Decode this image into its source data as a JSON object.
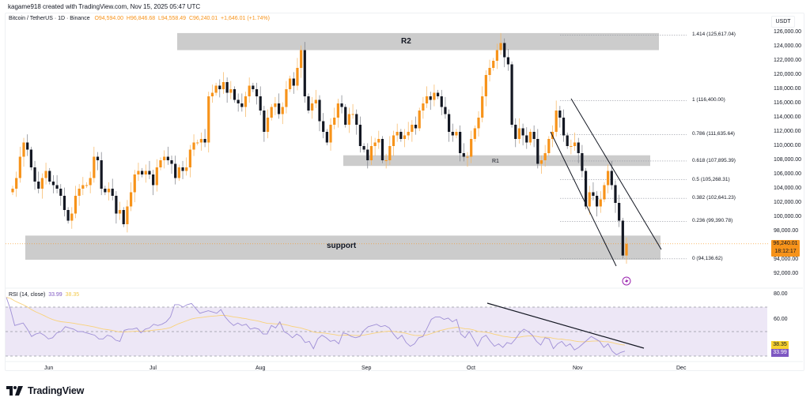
{
  "attribution": "kagame918 created with TradingView.com, Nov 15, 2025 05:47 UTC",
  "legend": {
    "symbol": "Bitcoin / TetherUS · 1D · Binance",
    "open": "O94,594.00",
    "high": "H96,846.68",
    "low": "L94,558.49",
    "close": "C96,240.01",
    "change": "+1,646.01 (+1.74%)"
  },
  "currency": "USDT",
  "price_tag": {
    "price": "96,240.01",
    "countdown": "18:12:17"
  },
  "rsi_legend": {
    "label": "RSI (14, close)",
    "rsi": "33.99",
    "ma": "38.35"
  },
  "rsi_tags": {
    "ma": "38.35",
    "rsi": "33.99"
  },
  "price_axis": [
    "126,000.00",
    "124,000.00",
    "122,000.00",
    "120,000.00",
    "118,000.00",
    "116,000.00",
    "114,000.00",
    "112,000.00",
    "110,000.00",
    "108,000.00",
    "106,000.00",
    "104,000.00",
    "102,000.00",
    "100,000.00",
    "98,000.00",
    "94,000.00",
    "92,000.00"
  ],
  "rsi_axis": [
    "80.00",
    "60.00"
  ],
  "x_axis": [
    "Jun",
    "Jul",
    "Aug",
    "Sep",
    "Oct",
    "Nov",
    "Dec"
  ],
  "zones": {
    "r2": "R2",
    "r1": "R1",
    "support": "support"
  },
  "fib_levels": [
    {
      "label": "1.414 (125,617.04)"
    },
    {
      "label": "1 (116,400.00)"
    },
    {
      "label": "0.786 (111,635.64)"
    },
    {
      "label": "0.618 (107,895.39)"
    },
    {
      "label": "0.5 (105,268.31)"
    },
    {
      "label": "0.382 (102,641.23)"
    },
    {
      "label": "0.236 (99,390.78)"
    },
    {
      "label": "0 (94,136.62)"
    }
  ],
  "branding": {
    "logo_text": "TradingView"
  },
  "colors": {
    "up": "#f7931a",
    "down": "#131722",
    "zone": "#cccccc",
    "rsi": "#7e57c2",
    "rsi_ma": "#f9d22f",
    "rsi_band": "#ede7f6"
  },
  "chart_data": {
    "type": "candlestick",
    "title": "Bitcoin / TetherUS · 1D · Binance",
    "ylabel": "USDT",
    "ylim": [
      91000,
      127000
    ],
    "x_ticks": [
      "Jun",
      "Jul",
      "Aug",
      "Sep",
      "Oct",
      "Nov",
      "Dec"
    ],
    "last": {
      "open": 94594.0,
      "high": 96846.68,
      "low": 94558.49,
      "close": 96240.01,
      "change": 1646.01,
      "change_pct": 1.74
    },
    "close_path": [
      104000,
      105500,
      108500,
      110500,
      109500,
      107000,
      105000,
      104000,
      105500,
      106500,
      105000,
      104500,
      104000,
      103000,
      101000,
      99500,
      100500,
      103000,
      104000,
      104500,
      104500,
      105500,
      108500,
      108000,
      104000,
      103500,
      104000,
      103000,
      100500,
      101000,
      99000,
      101500,
      103500,
      106000,
      106500,
      106000,
      106500,
      106000,
      104500,
      107000,
      108000,
      108500,
      108000,
      107500,
      105500,
      107000,
      106500,
      107000,
      109500,
      110500,
      110500,
      111000,
      110500,
      117000,
      117500,
      118500,
      118000,
      119000,
      117500,
      118000,
      116500,
      116000,
      115500,
      117000,
      118500,
      118000,
      117000,
      115000,
      112000,
      114000,
      115500,
      116000,
      114500,
      115500,
      118000,
      119500,
      118500,
      121000,
      123500,
      117000,
      115000,
      116000,
      116500,
      113500,
      112000,
      110500,
      113000,
      114000,
      116000,
      115500,
      113000,
      114500,
      114500,
      113000,
      110000,
      109500,
      108000,
      110000,
      110500,
      111000,
      108000,
      108000,
      110000,
      111500,
      112000,
      111000,
      111500,
      112000,
      113000,
      112500,
      115000,
      116000,
      117000,
      116500,
      117500,
      117000,
      115500,
      114500,
      112000,
      111500,
      112000,
      109000,
      108500,
      108500,
      111000,
      112500,
      114000,
      117000,
      120000,
      121000,
      122000,
      123500,
      124500,
      122500,
      121500,
      113000,
      111000,
      112500,
      111500,
      110500,
      112000,
      111000,
      107500,
      108000,
      109000,
      111000,
      112000,
      115000,
      114000,
      111500,
      110000,
      110000,
      110500,
      109000,
      106500,
      101500,
      103500,
      103000,
      101500,
      102500,
      104500,
      106500,
      104500,
      102000,
      99500,
      94594,
      96240
    ],
    "zones": [
      {
        "name": "R2",
        "from": 123500,
        "to": 125900
      },
      {
        "name": "R1",
        "from": 107200,
        "to": 108700
      },
      {
        "name": "support",
        "from": 94000,
        "to": 97400
      }
    ],
    "fibonacci": [
      {
        "ratio": 1.414,
        "price": 125617.04
      },
      {
        "ratio": 1,
        "price": 116400.0
      },
      {
        "ratio": 0.786,
        "price": 111635.64
      },
      {
        "ratio": 0.618,
        "price": 107895.39
      },
      {
        "ratio": 0.5,
        "price": 105268.31
      },
      {
        "ratio": 0.382,
        "price": 102641.23
      },
      {
        "ratio": 0.236,
        "price": 99390.78
      },
      {
        "ratio": 0,
        "price": 94136.62
      }
    ],
    "indicator": {
      "name": "RSI (14, close)",
      "rsi_last": 33.99,
      "ma_last": 38.35,
      "bands": [
        70,
        50,
        30
      ],
      "ylim": [
        25,
        82
      ],
      "rsi_path": [
        78,
        68,
        55,
        56,
        57,
        52,
        46,
        48,
        49,
        47,
        44,
        45,
        49,
        50,
        54,
        53,
        52,
        50,
        50,
        49,
        48,
        47,
        44,
        44,
        47,
        46,
        43,
        42,
        51,
        52,
        52,
        53,
        49,
        52,
        53,
        56,
        55,
        56,
        58,
        62,
        72,
        72,
        70,
        72,
        73,
        69,
        65,
        66,
        67,
        66,
        65,
        68,
        62,
        58,
        55,
        57,
        55,
        56,
        52,
        53,
        52,
        48,
        48,
        55,
        53,
        58,
        50,
        48,
        45,
        48,
        46,
        41,
        42,
        36,
        44,
        47,
        45,
        42,
        43,
        40,
        49,
        48,
        46,
        45,
        46,
        51,
        54,
        55,
        56,
        54,
        55,
        53,
        48,
        44,
        47,
        41,
        38,
        40,
        45,
        46,
        53,
        60,
        62,
        62,
        60,
        61,
        58,
        60,
        48,
        45,
        50,
        44,
        38,
        45,
        47,
        42,
        38,
        40,
        37,
        41,
        40,
        44,
        49,
        52,
        50,
        47,
        42,
        39,
        45,
        44,
        36,
        40,
        42,
        38,
        40,
        35,
        37,
        40,
        43,
        46,
        44,
        42,
        37,
        40,
        34,
        31,
        33,
        34
      ]
    },
    "annotations": [
      "descending channel",
      "RSI descending trendline from early Oct peak"
    ]
  }
}
